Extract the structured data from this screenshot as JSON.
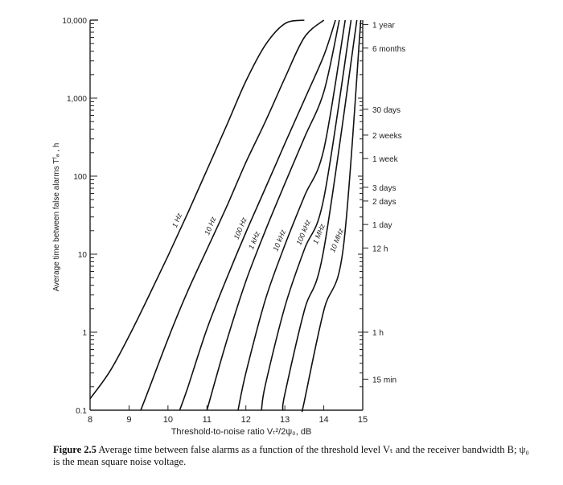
{
  "chart_data": {
    "type": "line",
    "title": "",
    "xlabel": "Threshold-to-noise ratio  Vₜ²/2ψ₀, dB",
    "ylabel": "Average time between false alarms  Tᶠₐ , h",
    "x_ticks": [
      8,
      9,
      10,
      11,
      12,
      13,
      14,
      15
    ],
    "xlim": [
      8,
      15
    ],
    "y_scale": "log",
    "ylim": [
      0.1,
      10000
    ],
    "y_tick_values": [
      0.1,
      1,
      10,
      100,
      1000,
      10000
    ],
    "y_tick_labels": [
      "0.1",
      "1",
      "10",
      "100",
      "1,000",
      "10,000"
    ],
    "grid": false,
    "legend": "none (curves labeled inline)",
    "series": [
      {
        "name": "1 Hz",
        "x": [
          8.0,
          8.5,
          9.0,
          9.5,
          10.0,
          10.5,
          11.0,
          11.5,
          12.0,
          12.5,
          13.0,
          13.5
        ],
        "y": [
          0.14,
          0.31,
          0.89,
          2.85,
          9.5,
          33,
          120,
          440,
          1650,
          4800,
          9000,
          10000
        ]
      },
      {
        "name": "10 Hz",
        "x": [
          9.3,
          9.5,
          10.0,
          10.5,
          11.0,
          11.5,
          12.0,
          12.5,
          13.0,
          13.5,
          14.0
        ],
        "y": [
          0.1,
          0.18,
          0.82,
          3.3,
          11.5,
          40,
          150,
          500,
          1800,
          6000,
          10000
        ]
      },
      {
        "name": "100 Hz",
        "x": [
          10.3,
          10.5,
          11.0,
          11.5,
          12.0,
          12.5,
          13.0,
          13.5,
          14.0,
          14.3
        ],
        "y": [
          0.1,
          0.19,
          1.1,
          4.8,
          19,
          70,
          260,
          950,
          3500,
          10000
        ]
      },
      {
        "name": "1 kHz",
        "x": [
          11.0,
          11.5,
          12.0,
          12.5,
          13.0,
          13.5,
          14.0,
          14.4
        ],
        "y": [
          0.1,
          0.75,
          4.5,
          20,
          80,
          310,
          1200,
          10000
        ]
      },
      {
        "name": "10 kHz",
        "x": [
          11.8,
          12.0,
          12.5,
          13.0,
          13.5,
          14.0,
          14.55
        ],
        "y": [
          0.1,
          0.3,
          2.6,
          13,
          55,
          220,
          10000
        ]
      },
      {
        "name": "100 kHz",
        "x": [
          12.4,
          12.5,
          13.0,
          13.5,
          14.0,
          14.7
        ],
        "y": [
          0.1,
          0.21,
          2.1,
          11.5,
          52,
          10000
        ]
      },
      {
        "name": "1 MHz",
        "x": [
          12.95,
          13.0,
          13.5,
          14.0,
          14.85
        ],
        "y": [
          0.1,
          0.16,
          1.9,
          11.5,
          10000
        ]
      },
      {
        "name": "10 MHz",
        "x": [
          13.45,
          13.5,
          14.0,
          14.5,
          14.95
        ],
        "y": [
          0.1,
          0.13,
          1.9,
          12,
          10000
        ]
      }
    ],
    "right_axis": {
      "labels": [
        {
          "text": "1 year",
          "hours": 8760
        },
        {
          "text": "6 months",
          "hours": 4380
        },
        {
          "text": "30 days",
          "hours": 720
        },
        {
          "text": "2 weeks",
          "hours": 336
        },
        {
          "text": "1 week",
          "hours": 168
        },
        {
          "text": "3 days",
          "hours": 72
        },
        {
          "text": "2 days",
          "hours": 48
        },
        {
          "text": "1 day",
          "hours": 24
        },
        {
          "text": "12 h",
          "hours": 12
        },
        {
          "text": "1 h",
          "hours": 1
        },
        {
          "text": "15 min",
          "hours": 0.25
        }
      ]
    },
    "curve_labels": [
      "1 Hz",
      "10 Hz",
      "100 Hz",
      "1 kHz",
      "10 kHz",
      "100 kHz",
      "1 MHz",
      "10 MHz"
    ]
  },
  "caption": {
    "label": "Figure 2.5",
    "text": "Average time between false alarms as a function of the threshold level Vₜ and the receiver bandwidth B; ψ₀ is the mean square noise voltage."
  },
  "colors": {
    "ink": "#111111",
    "background": "#ffffff"
  }
}
